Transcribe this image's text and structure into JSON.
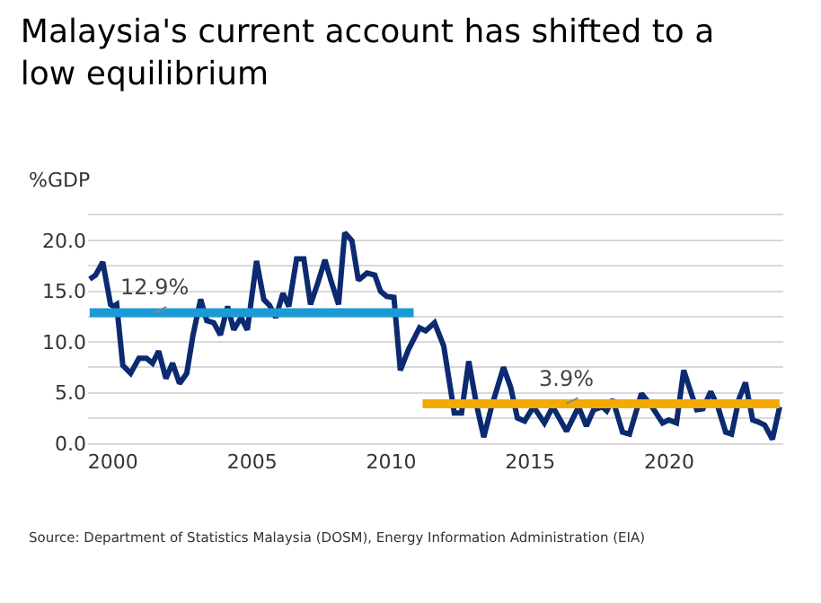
{
  "chart_data": {
    "type": "line",
    "title": "Malaysia's current account has shifted to a low equilibrium",
    "ylabel": "%GDP",
    "x": [
      1999.16,
      1999.37,
      1999.63,
      1999.91,
      2000.02,
      2000.13,
      2000.35,
      2000.63,
      2000.93,
      2001.2,
      2001.42,
      2001.64,
      2001.9,
      2002.14,
      2002.39,
      2002.65,
      2002.87,
      2003.15,
      2003.37,
      2003.62,
      2003.86,
      2004.12,
      2004.34,
      2004.6,
      2004.83,
      2005.16,
      2005.42,
      2005.63,
      2005.85,
      2006.11,
      2006.32,
      2006.6,
      2006.86,
      2007.1,
      2007.36,
      2007.62,
      2007.83,
      2008.11,
      2008.33,
      2008.59,
      2008.82,
      2009.13,
      2009.41,
      2009.62,
      2009.84,
      2010.1,
      2010.33,
      2010.63,
      2011.02,
      2011.24,
      2011.56,
      2011.89,
      2012.27,
      2012.53,
      2012.79,
      2013.07,
      2013.33,
      2013.61,
      2014.04,
      2014.3,
      2014.54,
      2014.8,
      2015.12,
      2015.51,
      2015.81,
      2016.31,
      2016.74,
      2017.02,
      2017.28,
      2017.6,
      2017.75,
      2017.97,
      2018.32,
      2018.57,
      2019.0,
      2019.33,
      2019.76,
      2019.98,
      2020.26,
      2020.52,
      2020.77,
      2020.99,
      2021.21,
      2021.49,
      2021.75,
      2022.03,
      2022.24,
      2022.5,
      2022.74,
      2023.0,
      2023.21,
      2023.43,
      2023.71,
      2023.97
    ],
    "series": [
      {
        "color": "#0b2a6f",
        "values": [
          16.2,
          16.6,
          17.9,
          13.7,
          13.5,
          13.7,
          7.7,
          6.9,
          8.4,
          8.4,
          7.9,
          9.1,
          6.4,
          7.9,
          5.9,
          6.9,
          10.6,
          14.2,
          12.1,
          11.9,
          10.7,
          13.5,
          11.2,
          12.4,
          11.2,
          18.0,
          14.2,
          13.6,
          12.4,
          14.8,
          13.5,
          18.2,
          18.2,
          13.7,
          15.8,
          18.1,
          16.1,
          13.7,
          20.8,
          20.0,
          16.1,
          16.8,
          16.6,
          15.0,
          14.5,
          14.4,
          7.2,
          9.3,
          11.4,
          11.1,
          11.9,
          9.6,
          3.0,
          3.0,
          8.1,
          3.8,
          0.6,
          3.6,
          7.5,
          5.5,
          2.5,
          2.2,
          3.6,
          2.0,
          3.6,
          1.2,
          3.6,
          1.7,
          3.3,
          3.6,
          3.2,
          4.3,
          1.1,
          0.9,
          4.9,
          3.8,
          2.0,
          2.3,
          2.0,
          7.2,
          5.1,
          3.3,
          3.4,
          5.1,
          3.6,
          1.1,
          0.9,
          4.3,
          6.0,
          2.3,
          2.1,
          1.8,
          0.4,
          3.6
        ]
      },
      {
        "type": "line",
        "color": "#1b9ad6",
        "x": [
          1999.16,
          2010.81
        ],
        "values": [
          12.9,
          12.9
        ]
      },
      {
        "type": "line",
        "color": "#f2a900",
        "x": [
          2011.13,
          2023.97
        ],
        "values": [
          3.9,
          3.9
        ]
      }
    ],
    "xlim": [
      1999.1,
      2024.1
    ],
    "xticks": [
      2000,
      2005,
      2010,
      2015,
      2020
    ],
    "ylim": [
      0,
      22.5
    ],
    "yticks": [
      {
        "value": 0,
        "label": "0.0"
      },
      {
        "value": 2.5,
        "label": null
      },
      {
        "value": 5,
        "label": "5.0"
      },
      {
        "value": 7.5,
        "label": null
      },
      {
        "value": 10,
        "label": "10.0"
      },
      {
        "value": 12.5,
        "label": null
      },
      {
        "value": 15,
        "label": "15.0"
      },
      {
        "value": 17.5,
        "label": null
      },
      {
        "value": 20,
        "label": "20.0"
      },
      {
        "value": 22.5,
        "label": null
      }
    ],
    "grid": "y",
    "annotations": [
      {
        "text": "12.9%",
        "x": 2001.5,
        "y": 12.9
      },
      {
        "text": "3.9%",
        "x": 2016.3,
        "y": 3.9
      },
      "Source: Department of Statistics Malaysia (DOSM), Energy Information Administration (EIA)"
    ]
  }
}
